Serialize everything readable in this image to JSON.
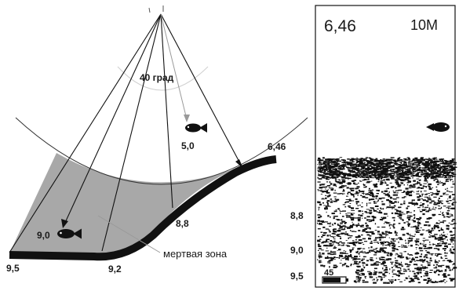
{
  "diagram": {
    "beam_angle_label": "40 град",
    "fish_upper_depth": "5,0",
    "fish_lower_depth": "9,0",
    "bottom_top_depth": "6,46",
    "depth_8_8": "8,8",
    "depth_9_2": "9,2",
    "depth_9_5": "9,5",
    "dead_zone_label": "мертвая зона"
  },
  "screen": {
    "depth_reading": "6,46",
    "range_label": "10M",
    "scale_labels": [
      "8,8",
      "9,0",
      "9,5"
    ],
    "battery_label": "45"
  },
  "colors": {
    "line": "#111111",
    "dead_zone_fill": "#a8a8a8",
    "arc": "#333333",
    "angle_arc": "#c8c8c8"
  }
}
